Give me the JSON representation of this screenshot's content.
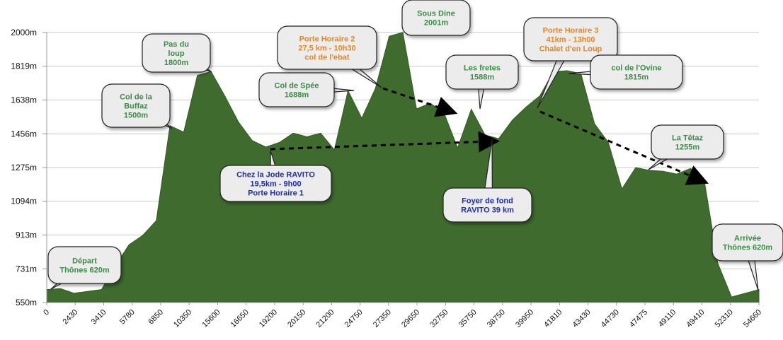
{
  "chart_data": {
    "type": "area",
    "title": "",
    "xlabel": "",
    "ylabel": "",
    "ylim": [
      550,
      2050
    ],
    "grid": true,
    "color": "#3f6b2e",
    "y_ticks": [
      "2000m",
      "1819m",
      "1638m",
      "1456m",
      "1275m",
      "1094m",
      "913m",
      "731m",
      "550m"
    ],
    "y_tick_values": [
      2000,
      1819,
      1638,
      1456,
      1275,
      1094,
      913,
      731,
      550
    ],
    "x_ticks": [
      "0",
      "2430",
      "3410",
      "5780",
      "6850",
      "10350",
      "15600",
      "16650",
      "19200",
      "20150",
      "21200",
      "24750",
      "27350",
      "29650",
      "32750",
      "35750",
      "38750",
      "39950",
      "41810",
      "43430",
      "44730",
      "47475",
      "49110",
      "49410",
      "52310",
      "54660"
    ],
    "series": [
      {
        "values": [
          620,
          625,
          600,
          610,
          620,
          745,
          860,
          910,
          990,
          1500,
          1465,
          1770,
          1790,
          1660,
          1520,
          1420,
          1385,
          1410,
          1460,
          1440,
          1460,
          1370,
          1688,
          1540,
          1700,
          1980,
          2001,
          1590,
          1620,
          1570,
          1380,
          1588,
          1450,
          1430,
          1530,
          1600,
          1660,
          1790,
          1795,
          1780,
          1510,
          1410,
          1160,
          1275,
          1260,
          1255,
          1240,
          1270,
          1210,
          760,
          580,
          600,
          620
        ]
      }
    ],
    "callouts": [
      {
        "label": "Départ\nThônes 620m",
        "color": "#3a8c46"
      },
      {
        "label": "Col de la\nBuffaz\n1500m",
        "color": "#3a8c46"
      },
      {
        "label": "Pas du\nloup\n1800m",
        "color": "#3a8c46"
      },
      {
        "label": "Col de Spée\n1688m",
        "color": "#3a8c46"
      },
      {
        "label": "Porte Horaire 2\n27,5 km - 10h30\ncol de l'ebat",
        "color": "#e8871e"
      },
      {
        "label": "Sous Dine\n2001m",
        "color": "#3a8c46"
      },
      {
        "label": "Les fretes\n1588m",
        "color": "#3a8c46"
      },
      {
        "label": "Porte Horaire 3\n41km - 13h00\nChalet d'en Loup",
        "color": "#e8871e"
      },
      {
        "label": "col de l'Ovine\n1815m",
        "color": "#3a8c46"
      },
      {
        "label": "La Têtaz\n1255m",
        "color": "#3a8c46"
      },
      {
        "label": "Chez la Jode RAVITO\n19,5km - 9h00\nPorte Horaire 1",
        "color": "#1f2fa8"
      },
      {
        "label": "Foyer de fond\nRAVITO 39 km",
        "color": "#1f2fa8"
      },
      {
        "label": "Arrivée\nThônes 620m",
        "color": "#3a8c46"
      }
    ]
  }
}
